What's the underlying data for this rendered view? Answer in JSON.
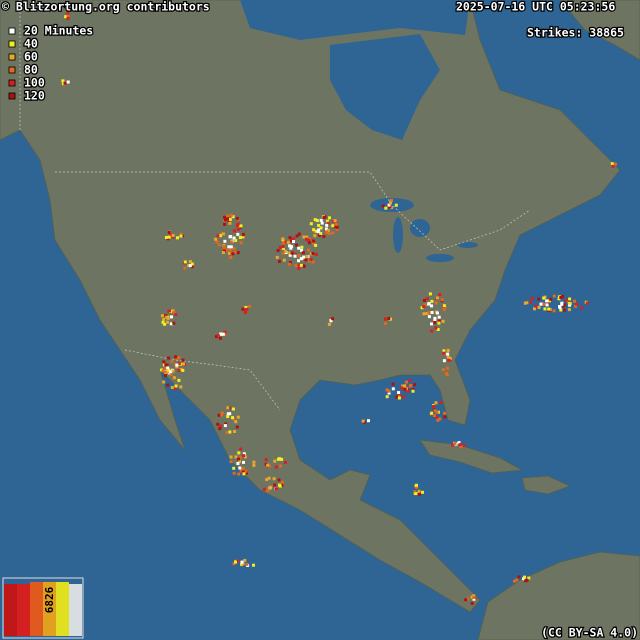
{
  "header": {
    "credit": "© Blitzortung.org contributors",
    "timestamp": "2025-07-16 UTC 05:23:56",
    "strikes": "Strikes: 38865"
  },
  "legend": {
    "items": [
      "20 Minutes",
      "40",
      "60",
      "80",
      "100",
      "120"
    ]
  },
  "histogram": {
    "label": "6826"
  },
  "footer": {
    "license": "(CC BY-SA 4.0)"
  }
}
